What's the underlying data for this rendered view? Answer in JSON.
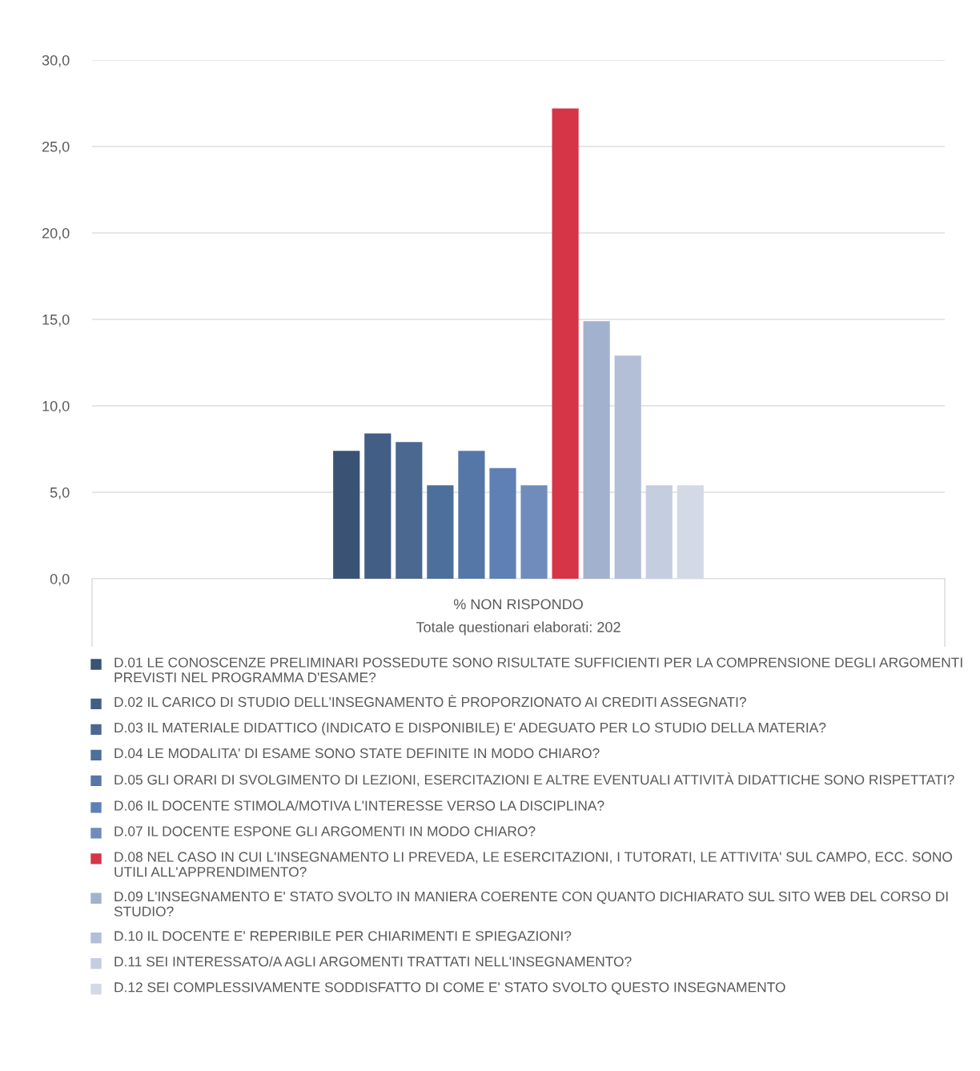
{
  "chart_data": {
    "type": "bar",
    "categories": [
      "% NON RISPONDO"
    ],
    "ylim": [
      0,
      30
    ],
    "yticks": [
      {
        "value": 0,
        "label": "0,0"
      },
      {
        "value": 5,
        "label": "5,0"
      },
      {
        "value": 10,
        "label": "10,0"
      },
      {
        "value": 15,
        "label": "15,0"
      },
      {
        "value": 20,
        "label": "20,0"
      },
      {
        "value": 25,
        "label": "25,0"
      },
      {
        "value": 30,
        "label": "30,0"
      }
    ],
    "grid": "y",
    "legend": "bottom",
    "annotations": [
      "Totale questionari elaborati: 202"
    ],
    "series": [
      {
        "name": "D.01 LE CONOSCENZE PRELIMINARI POSSEDUTE SONO RISULTATE SUFFICIENTI PER LA COMPRENSIONE DEGLI ARGOMENTI PREVISTI NEL PROGRAMMA D'ESAME?",
        "color": "#3a5274",
        "values": [
          7.4
        ]
      },
      {
        "name": "D.02 IL CARICO DI STUDIO DELL'INSEGNAMENTO È PROPORZIONATO AI CREDITI ASSEGNATI?",
        "color": "#425e84",
        "values": [
          8.4
        ]
      },
      {
        "name": "D.03 IL MATERIALE DIDATTICO (INDICATO E DISPONIBILE) E' ADEGUATO PER LO STUDIO DELLA MATERIA?",
        "color": "#4a6890",
        "values": [
          7.9
        ]
      },
      {
        "name": "D.04 LE MODALITA' DI ESAME SONO STATE DEFINITE IN MODO CHIARO?",
        "color": "#4d6f9b",
        "values": [
          5.4
        ]
      },
      {
        "name": "D.05 GLI ORARI DI SVOLGIMENTO DI LEZIONI, ESERCITAZIONI E ALTRE EVENTUALI ATTIVITÀ DIDATTICHE SONO RISPETTATI?",
        "color": "#5577a8",
        "values": [
          7.4
        ]
      },
      {
        "name": "D.06 IL DOCENTE STIMOLA/MOTIVA L'INTERESSE VERSO LA DISCIPLINA?",
        "color": "#5f80b4",
        "values": [
          6.4
        ]
      },
      {
        "name": "D.07 IL DOCENTE ESPONE GLI ARGOMENTI IN MODO CHIARO?",
        "color": "#6f8cbc",
        "values": [
          5.4
        ]
      },
      {
        "name": "D.08 NEL CASO IN CUI L'INSEGNAMENTO LI PREVEDA, LE ESERCITAZIONI, I TUTORATI, LE ATTIVITA' SUL CAMPO, ECC. SONO UTILI ALL'APPRENDIMENTO?",
        "color": "#d63447",
        "values": [
          27.2
        ]
      },
      {
        "name": "D.09 L'INSEGNAMENTO E' STATO SVOLTO IN MANIERA COERENTE CON QUANTO DICHIARATO SUL SITO WEB DEL CORSO DI STUDIO?",
        "color": "#a2b1cd",
        "values": [
          14.9
        ]
      },
      {
        "name": "D.10 IL DOCENTE E' REPERIBILE PER CHIARIMENTI E SPIEGAZIONI?",
        "color": "#b3bfd6",
        "values": [
          12.9
        ]
      },
      {
        "name": "D.11 SEI INTERESSATO/A AGLI ARGOMENTI TRATTATI NELL'INSEGNAMENTO?",
        "color": "#c5cde0",
        "values": [
          5.4
        ]
      },
      {
        "name": "D.12 SEI COMPLESSIVAMENTE SODDISFATTO DI COME E' STATO SVOLTO QUESTO INSEGNAMENTO",
        "color": "#d4d9e6",
        "values": [
          5.4
        ]
      }
    ]
  }
}
